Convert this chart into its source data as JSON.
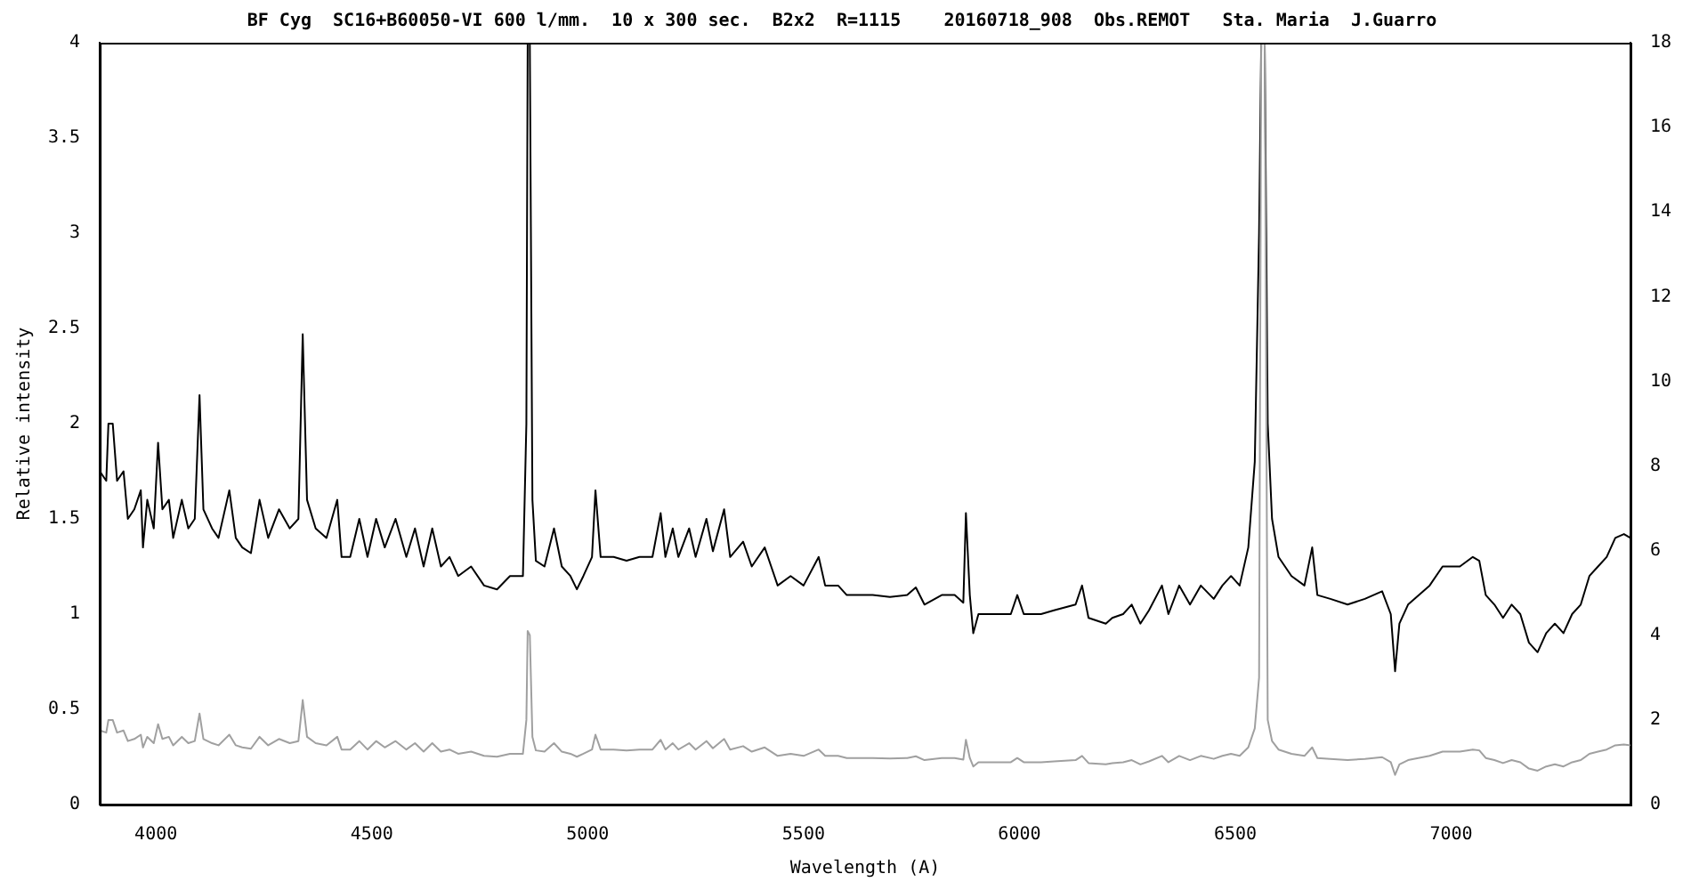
{
  "chart_data": {
    "type": "line",
    "title": "BF Cyg  SC16+B60050-VI 600 l/mm.  10 x 300 sec.  B2x2  R=1115    20160718_908  Obs.REMOT   Sta. Maria  J.Guarro",
    "xlabel": "Wavelength (A)",
    "ylabel": "Relative intensity",
    "grid": false,
    "legend": false,
    "marker": "none",
    "line_style": "solid",
    "x": [
      3870,
      3885,
      3890,
      3900,
      3910,
      3925,
      3935,
      3950,
      3965,
      3970,
      3980,
      3995,
      4005,
      4015,
      4030,
      4040,
      4060,
      4075,
      4090,
      4101,
      4110,
      4130,
      4145,
      4170,
      4185,
      4200,
      4220,
      4240,
      4260,
      4285,
      4310,
      4330,
      4340,
      4350,
      4370,
      4395,
      4420,
      4430,
      4450,
      4471,
      4490,
      4510,
      4530,
      4555,
      4580,
      4600,
      4620,
      4640,
      4660,
      4680,
      4700,
      4730,
      4760,
      4790,
      4820,
      4850,
      4858,
      4861,
      4866,
      4872,
      4880,
      4900,
      4922,
      4940,
      4960,
      4975,
      4990,
      5010,
      5018,
      5030,
      5060,
      5090,
      5120,
      5150,
      5169,
      5180,
      5197,
      5210,
      5235,
      5250,
      5275,
      5290,
      5316,
      5330,
      5360,
      5380,
      5410,
      5425,
      5440,
      5470,
      5500,
      5535,
      5550,
      5580,
      5600,
      5630,
      5660,
      5700,
      5740,
      5760,
      5780,
      5820,
      5850,
      5870,
      5876,
      5885,
      5893,
      5905,
      5940,
      5980,
      5995,
      6010,
      6050,
      6080,
      6130,
      6145,
      6160,
      6200,
      6215,
      6240,
      6260,
      6280,
      6300,
      6330,
      6345,
      6370,
      6395,
      6420,
      6450,
      6470,
      6490,
      6510,
      6530,
      6545,
      6555,
      6560,
      6568,
      6575,
      6585,
      6600,
      6630,
      6660,
      6678,
      6690,
      6720,
      6760,
      6800,
      6840,
      6860,
      6870,
      6880,
      6900,
      6950,
      6980,
      7020,
      7050,
      7065,
      7080,
      7100,
      7120,
      7140,
      7160,
      7180,
      7200,
      7220,
      7240,
      7260,
      7280,
      7300,
      7320,
      7340,
      7360,
      7380,
      7400,
      7415
    ],
    "series": [
      {
        "color": "#000000",
        "values": [
          1.75,
          1.7,
          2.0,
          2.0,
          1.7,
          1.75,
          1.5,
          1.55,
          1.65,
          1.35,
          1.6,
          1.45,
          1.9,
          1.55,
          1.6,
          1.4,
          1.6,
          1.45,
          1.5,
          2.15,
          1.55,
          1.45,
          1.4,
          1.65,
          1.4,
          1.35,
          1.32,
          1.6,
          1.4,
          1.55,
          1.45,
          1.5,
          2.47,
          1.6,
          1.45,
          1.4,
          1.6,
          1.3,
          1.3,
          1.5,
          1.3,
          1.5,
          1.35,
          1.5,
          1.3,
          1.45,
          1.25,
          1.45,
          1.25,
          1.3,
          1.2,
          1.25,
          1.15,
          1.13,
          1.2,
          1.2,
          2.0,
          4.0,
          4.0,
          1.6,
          1.28,
          1.25,
          1.45,
          1.25,
          1.2,
          1.13,
          1.2,
          1.3,
          1.65,
          1.3,
          1.3,
          1.28,
          1.3,
          1.3,
          1.53,
          1.3,
          1.45,
          1.3,
          1.45,
          1.3,
          1.5,
          1.33,
          1.55,
          1.3,
          1.38,
          1.25,
          1.35,
          1.25,
          1.15,
          1.2,
          1.15,
          1.3,
          1.15,
          1.15,
          1.1,
          1.1,
          1.1,
          1.09,
          1.1,
          1.14,
          1.05,
          1.1,
          1.1,
          1.06,
          1.53,
          1.1,
          0.9,
          1.0,
          1.0,
          1.0,
          1.1,
          1.0,
          1.0,
          1.02,
          1.05,
          1.15,
          0.98,
          0.95,
          0.98,
          1.0,
          1.05,
          0.95,
          1.02,
          1.15,
          1.0,
          1.15,
          1.05,
          1.15,
          1.08,
          1.15,
          1.2,
          1.15,
          1.35,
          1.8,
          3.0,
          4.0,
          4.0,
          2.0,
          1.5,
          1.3,
          1.2,
          1.15,
          1.35,
          1.1,
          1.08,
          1.05,
          1.08,
          1.12,
          1.0,
          0.7,
          0.95,
          1.05,
          1.15,
          1.25,
          1.25,
          1.3,
          1.28,
          1.1,
          1.05,
          0.98,
          1.05,
          1.0,
          0.85,
          0.8,
          0.9,
          0.95,
          0.9,
          1.0,
          1.05,
          1.2,
          1.25,
          1.3,
          1.4,
          1.42,
          1.4
        ]
      },
      {
        "color": "#a0a0a0",
        "axis": "y2",
        "values": [
          1.75,
          1.7,
          2.0,
          2.0,
          1.7,
          1.75,
          1.5,
          1.55,
          1.65,
          1.35,
          1.6,
          1.45,
          1.9,
          1.55,
          1.6,
          1.4,
          1.6,
          1.45,
          1.5,
          2.15,
          1.55,
          1.45,
          1.4,
          1.65,
          1.4,
          1.35,
          1.32,
          1.6,
          1.4,
          1.55,
          1.45,
          1.5,
          2.47,
          1.6,
          1.45,
          1.4,
          1.6,
          1.3,
          1.3,
          1.5,
          1.3,
          1.5,
          1.35,
          1.5,
          1.3,
          1.45,
          1.25,
          1.45,
          1.25,
          1.3,
          1.2,
          1.25,
          1.15,
          1.13,
          1.2,
          1.2,
          2.0,
          4.1,
          4.0,
          1.6,
          1.28,
          1.25,
          1.45,
          1.25,
          1.2,
          1.13,
          1.2,
          1.3,
          1.65,
          1.3,
          1.3,
          1.28,
          1.3,
          1.3,
          1.53,
          1.3,
          1.45,
          1.3,
          1.45,
          1.3,
          1.5,
          1.33,
          1.55,
          1.3,
          1.38,
          1.25,
          1.35,
          1.25,
          1.15,
          1.2,
          1.15,
          1.3,
          1.15,
          1.15,
          1.1,
          1.1,
          1.1,
          1.09,
          1.1,
          1.14,
          1.05,
          1.1,
          1.1,
          1.06,
          1.53,
          1.1,
          0.9,
          1.0,
          1.0,
          1.0,
          1.1,
          1.0,
          1.0,
          1.02,
          1.05,
          1.15,
          0.98,
          0.95,
          0.98,
          1.0,
          1.05,
          0.95,
          1.02,
          1.15,
          1.0,
          1.15,
          1.05,
          1.15,
          1.08,
          1.15,
          1.2,
          1.15,
          1.35,
          1.8,
          3.0,
          18,
          18,
          2.0,
          1.5,
          1.3,
          1.2,
          1.15,
          1.35,
          1.1,
          1.08,
          1.05,
          1.08,
          1.12,
          1.0,
          0.7,
          0.95,
          1.05,
          1.15,
          1.25,
          1.25,
          1.3,
          1.28,
          1.1,
          1.05,
          0.98,
          1.05,
          1.0,
          0.85,
          0.8,
          0.9,
          0.95,
          0.9,
          1.0,
          1.05,
          1.2,
          1.25,
          1.3,
          1.4,
          1.42,
          1.4
        ]
      }
    ],
    "xlim": [
      3870,
      7415
    ],
    "xticks": [
      4000,
      4500,
      5000,
      5500,
      6000,
      6500,
      7000
    ],
    "ylim": [
      0,
      4
    ],
    "yticks": [
      0,
      0.5,
      1,
      1.5,
      2,
      2.5,
      3,
      3.5,
      4
    ],
    "y2lim": [
      0,
      18
    ],
    "y2ticks": [
      0,
      2,
      4,
      6,
      8,
      10,
      12,
      14,
      16,
      18
    ]
  }
}
